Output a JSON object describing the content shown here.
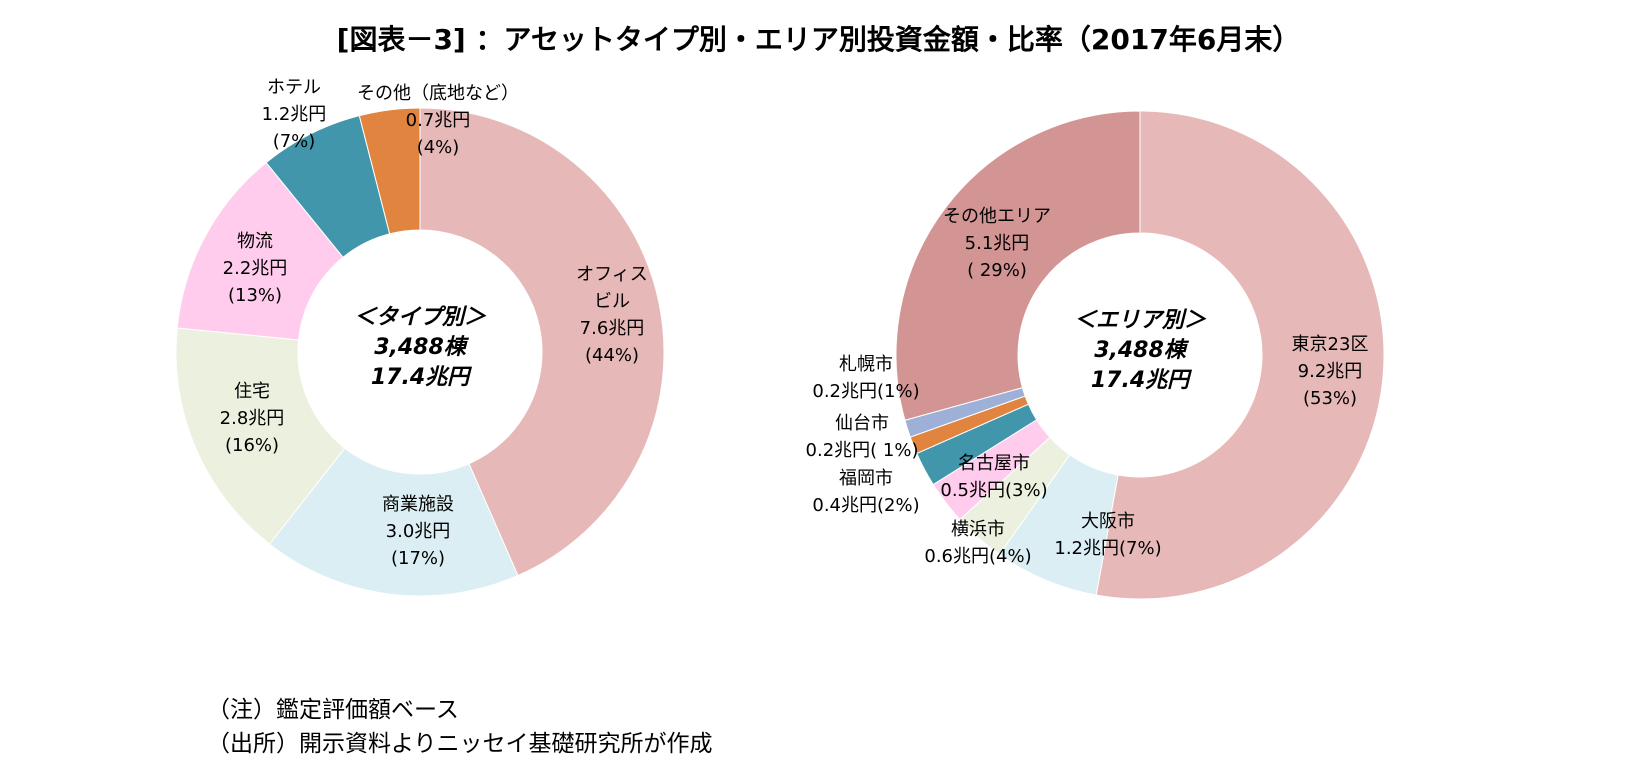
{
  "title": "[図表－3] ：アセットタイプ別・エリア別投資金額・比率（2017年6月末）",
  "notes": {
    "note": "（注）鑑定評価額ベース",
    "source": "（出所）開示資料よりニッセイ基礎研究所が作成"
  },
  "chart_data": [
    {
      "type": "pie",
      "subtype": "donut",
      "center_label": [
        "＜タイプ別＞",
        "3,488棟",
        "17.4兆円"
      ],
      "unit": "兆円",
      "slices": [
        {
          "name": "オフィスビル",
          "label_lines": [
            "オフィス",
            "ビル"
          ],
          "value": 7.6,
          "value_text": "7.6兆円",
          "pct_text": "(44%)",
          "color": "#e6b8b7"
        },
        {
          "name": "商業施設",
          "label_lines": [
            "商業施設"
          ],
          "value": 3.0,
          "value_text": "3.0兆円",
          "pct_text": "(17%)",
          "color": "#daeef3"
        },
        {
          "name": "住宅",
          "label_lines": [
            "住宅"
          ],
          "value": 2.8,
          "value_text": "2.8兆円",
          "pct_text": "(16%)",
          "color": "#ebf1de"
        },
        {
          "name": "物流",
          "label_lines": [
            "物流"
          ],
          "value": 2.2,
          "value_text": "2.2兆円",
          "pct_text": "(13%)",
          "color": "#ffccee"
        },
        {
          "name": "ホテル",
          "label_lines": [
            "ホテル"
          ],
          "value": 1.2,
          "value_text": "1.2兆円",
          "pct_text": "(7%)",
          "color": "#4196ab"
        },
        {
          "name": "その他（底地など）",
          "label_lines": [
            "その他（底地など）"
          ],
          "value": 0.7,
          "value_text": "0.7兆円",
          "pct_text": "(4%)",
          "color": "#e0843f"
        }
      ]
    },
    {
      "type": "pie",
      "subtype": "donut",
      "center_label": [
        "＜エリア別＞",
        "3,488棟",
        "17.4兆円"
      ],
      "unit": "兆円",
      "slices": [
        {
          "name": "東京23区",
          "label_lines": [
            "東京23区",
            "9.2兆円",
            "(53%)"
          ],
          "value": 9.2,
          "color": "#e6b8b7"
        },
        {
          "name": "大阪市",
          "label_lines": [
            "大阪市",
            "1.2兆円(7%)"
          ],
          "value": 1.2,
          "color": "#daeef3"
        },
        {
          "name": "横浜市",
          "label_lines": [
            "横浜市",
            "0.6兆円(4%)"
          ],
          "value": 0.6,
          "color": "#ebf1de"
        },
        {
          "name": "名古屋市",
          "label_lines": [
            "名古屋市",
            "0.5兆円(3%)"
          ],
          "value": 0.5,
          "color": "#ffccee"
        },
        {
          "name": "福岡市",
          "label_lines": [
            "福岡市",
            "0.4兆円(2%)"
          ],
          "value": 0.4,
          "color": "#4196ab"
        },
        {
          "name": "仙台市",
          "label_lines": [
            "仙台市",
            "0.2兆円( 1%)"
          ],
          "value": 0.2,
          "color": "#e0843f"
        },
        {
          "name": "札幌市",
          "label_lines": [
            "札幌市",
            "0.2兆円(1%)"
          ],
          "value": 0.2,
          "color": "#9eb0d8"
        },
        {
          "name": "その他エリア",
          "label_lines": [
            "その他エリア",
            "5.1兆円",
            "( 29%)"
          ],
          "value": 5.1,
          "color": "#d39494"
        }
      ]
    }
  ]
}
